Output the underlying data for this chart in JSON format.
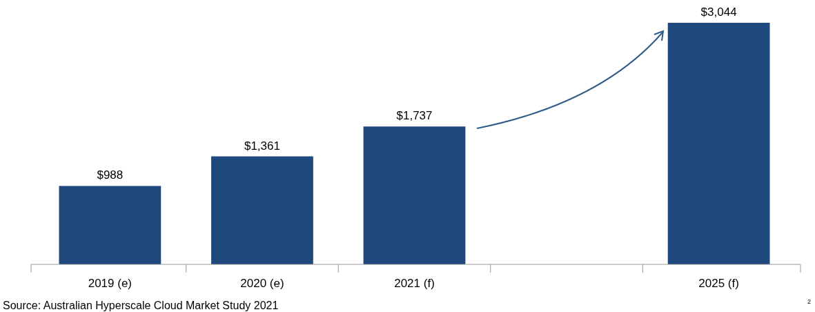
{
  "chart_data": {
    "type": "bar",
    "categories": [
      "2019 (e)",
      "2020 (e)",
      "2021 (f)",
      null,
      "2025 (f)"
    ],
    "values": [
      988,
      1361,
      1737,
      null,
      3044
    ],
    "value_labels": [
      "$988",
      "$1,361",
      "$1,737",
      null,
      "$3,044"
    ],
    "color": "#1f497d",
    "annotations": [
      "Source: Australian Hyperscale Cloud Market Study 2021",
      "2"
    ]
  }
}
